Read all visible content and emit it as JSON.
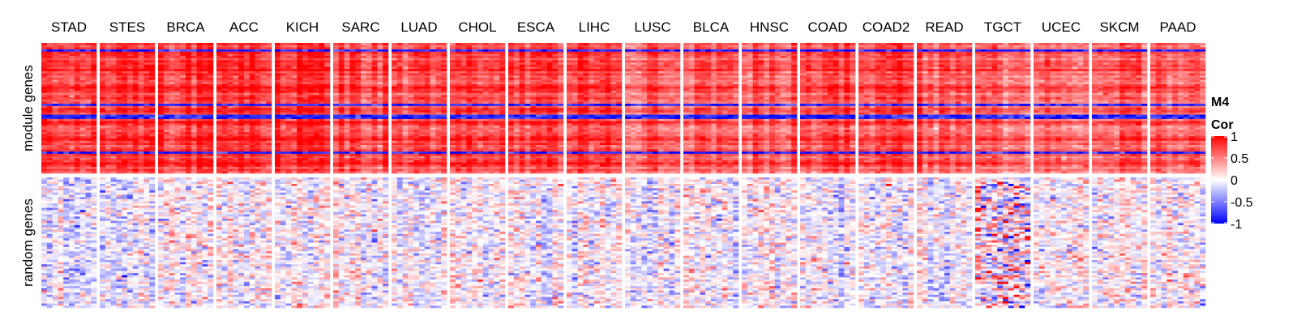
{
  "chart_data": {
    "type": "heatmap",
    "legend": {
      "title_line1": "M4",
      "title_line2": "Cor",
      "ticks": [
        {
          "value": 1,
          "label": "1"
        },
        {
          "value": 0.5,
          "label": "0.5"
        },
        {
          "value": 0,
          "label": "0"
        },
        {
          "value": -0.5,
          "label": "-0.5"
        },
        {
          "value": -1,
          "label": "-1"
        }
      ],
      "color_stops": [
        {
          "value": -1,
          "color": "#0000ff"
        },
        {
          "value": 0,
          "color": "#ffffff"
        },
        {
          "value": 1,
          "color": "#ff0000"
        }
      ],
      "placement": "right"
    },
    "row_groups": [
      {
        "label": "module genes",
        "typical_cor": 0.7
      },
      {
        "label": "random genes",
        "typical_cor": 0.0
      }
    ],
    "column_groups": [
      {
        "label": "STAD",
        "module_mean": 0.72,
        "random_mean": -0.05
      },
      {
        "label": "STES",
        "module_mean": 0.7,
        "random_mean": -0.04
      },
      {
        "label": "BRCA",
        "module_mean": 0.75,
        "random_mean": -0.02
      },
      {
        "label": "ACC",
        "module_mean": 0.78,
        "random_mean": 0.0
      },
      {
        "label": "KICH",
        "module_mean": 0.8,
        "random_mean": 0.02
      },
      {
        "label": "SARC",
        "module_mean": 0.68,
        "random_mean": 0.0
      },
      {
        "label": "LUAD",
        "module_mean": 0.65,
        "random_mean": -0.02
      },
      {
        "label": "CHOL",
        "module_mean": 0.72,
        "random_mean": 0.03
      },
      {
        "label": "ESCA",
        "module_mean": 0.72,
        "random_mean": -0.02
      },
      {
        "label": "LIHC",
        "module_mean": 0.74,
        "random_mean": 0.0
      },
      {
        "label": "LUSC",
        "module_mean": 0.6,
        "random_mean": 0.0
      },
      {
        "label": "BLCA",
        "module_mean": 0.62,
        "random_mean": -0.02
      },
      {
        "label": "HNSC",
        "module_mean": 0.6,
        "random_mean": 0.0
      },
      {
        "label": "COAD",
        "module_mean": 0.7,
        "random_mean": -0.06
      },
      {
        "label": "COAD2",
        "module_mean": 0.7,
        "random_mean": -0.06
      },
      {
        "label": "READ",
        "module_mean": 0.62,
        "random_mean": -0.08
      },
      {
        "label": "TGCT",
        "module_mean": 0.55,
        "random_mean": 0.05
      },
      {
        "label": "UCEC",
        "module_mean": 0.55,
        "random_mean": 0.0
      },
      {
        "label": "SKCM",
        "module_mean": 0.58,
        "random_mean": 0.0
      },
      {
        "label": "PAAD",
        "module_mean": 0.6,
        "random_mean": 0.02
      }
    ],
    "grid": false
  }
}
